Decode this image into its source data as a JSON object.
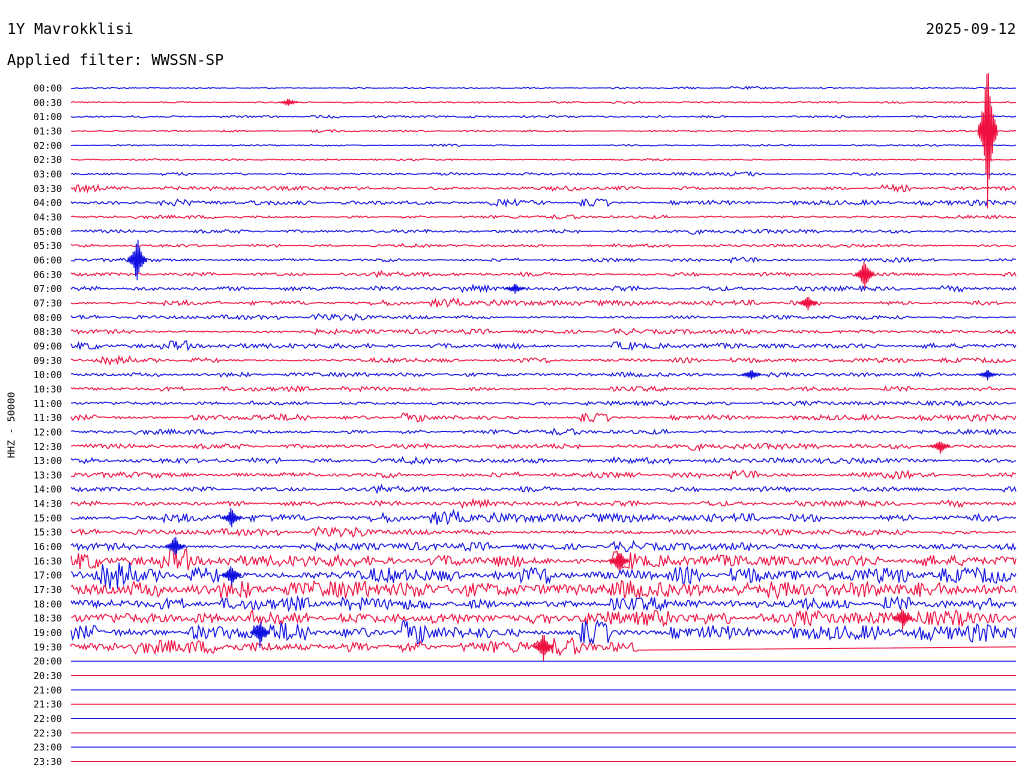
{
  "header": {
    "station": "1Y Mavrokklisi",
    "date": "2025-09-12",
    "filter_label": "Applied filter: WWSSN-SP"
  },
  "side_label": "HHZ - 50000",
  "colors": {
    "blue": "#1010e0",
    "red": "#ee1040"
  },
  "chart_data": {
    "type": "line",
    "title": "1Y Mavrokklisi",
    "row_labels": [
      "00:00",
      "00:30",
      "01:00",
      "01:30",
      "02:00",
      "02:30",
      "03:00",
      "03:30",
      "04:00",
      "04:30",
      "05:00",
      "05:30",
      "06:00",
      "06:30",
      "07:00",
      "07:30",
      "08:00",
      "08:30",
      "09:00",
      "09:30",
      "10:00",
      "10:30",
      "11:00",
      "11:30",
      "12:00",
      "12:30",
      "13:00",
      "13:30",
      "14:00",
      "14:30",
      "15:00",
      "15:30",
      "16:00",
      "16:30",
      "17:00",
      "17:30",
      "18:00",
      "18:30",
      "19:00",
      "19:30",
      "20:00",
      "20:30",
      "21:00",
      "21:30",
      "22:00",
      "22:30",
      "23:00",
      "23:30"
    ],
    "row_colors": [
      "blue",
      "red"
    ],
    "activity": [
      0.6,
      0.6,
      0.8,
      0.6,
      0.6,
      0.6,
      1.0,
      1.4,
      1.6,
      1.2,
      1.4,
      1.2,
      1.2,
      1.4,
      1.6,
      1.8,
      1.6,
      1.8,
      1.8,
      1.8,
      1.6,
      1.8,
      1.6,
      1.8,
      1.8,
      2.0,
      2.2,
      2.0,
      1.8,
      1.8,
      3.0,
      2.4,
      3.0,
      4.2,
      6.0,
      6.5,
      5.0,
      5.5,
      5.0,
      5.0,
      0.4,
      0.4,
      0.6,
      0.4,
      0.4,
      0.4,
      0.6,
      0.4
    ],
    "data_end_fraction": 0.6,
    "data_end_row": 39,
    "bursts": [
      {
        "row": 1,
        "x": 0.23,
        "amp": 4
      },
      {
        "row": 3,
        "x": 0.97,
        "amp": 80
      },
      {
        "row": 12,
        "x": 0.07,
        "amp": 25
      },
      {
        "row": 13,
        "x": 0.84,
        "amp": 18
      },
      {
        "row": 14,
        "x": 0.47,
        "amp": 6
      },
      {
        "row": 15,
        "x": 0.78,
        "amp": 8
      },
      {
        "row": 20,
        "x": 0.72,
        "amp": 7
      },
      {
        "row": 20,
        "x": 0.97,
        "amp": 6
      },
      {
        "row": 25,
        "x": 0.92,
        "amp": 8
      },
      {
        "row": 30,
        "x": 0.17,
        "amp": 12
      },
      {
        "row": 32,
        "x": 0.11,
        "amp": 12
      },
      {
        "row": 33,
        "x": 0.58,
        "amp": 14
      },
      {
        "row": 34,
        "x": 0.17,
        "amp": 14
      },
      {
        "row": 37,
        "x": 0.88,
        "amp": 12
      },
      {
        "row": 38,
        "x": 0.2,
        "amp": 16
      },
      {
        "row": 39,
        "x": 0.5,
        "amp": 16
      }
    ]
  }
}
